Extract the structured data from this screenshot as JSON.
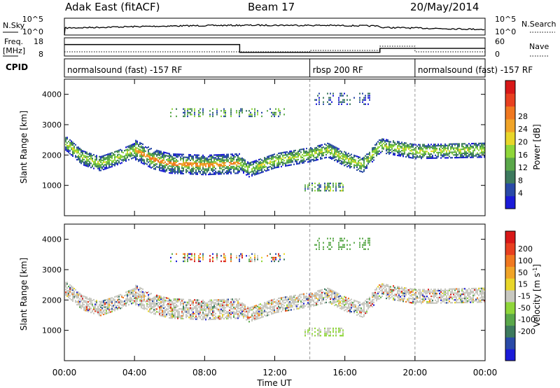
{
  "header": {
    "station": "Adak East (fitACF)",
    "beam": "Beam 17",
    "date": "20/May/2014"
  },
  "summary": {
    "nsky_label": "N.Sky",
    "nsearch_label": "N.Search",
    "freq_label_line1": "Freq.",
    "freq_label_line2": "[MHz]",
    "nave_label": "Nave",
    "cpid_label": "CPID",
    "left_ticks_top": [
      "10^5",
      "10^0"
    ],
    "left_ticks_freq": [
      "18",
      "8"
    ],
    "right_ticks_top": [
      "10^5",
      "10^0"
    ],
    "right_ticks_nave": [
      "60",
      "0"
    ],
    "cpid_segments": [
      {
        "label": "normalsound (fast) -157 RF",
        "start_hour": 0.0,
        "end_hour": 14.0
      },
      {
        "label": "rbsp 200 RF",
        "start_hour": 14.0,
        "end_hour": 20.0
      },
      {
        "label": "normalsound (fast) -157 RF",
        "start_hour": 20.0,
        "end_hour": 24.0
      }
    ],
    "freq_mhz_steps": [
      {
        "start_hour": 0.0,
        "end_hour": 10.0,
        "freq_mhz": 14.3
      },
      {
        "start_hour": 10.0,
        "end_hour": 18.0,
        "freq_mhz": 10.0
      },
      {
        "start_hour": 18.0,
        "end_hour": 24.0,
        "freq_mhz": 12.2
      }
    ]
  },
  "chart_data": [
    {
      "type": "heatmap",
      "panel": "power",
      "ylabel": "Slant Range [km]",
      "ylim": [
        0,
        4500
      ],
      "yticks": [
        1000,
        2000,
        3000,
        4000
      ],
      "colorbar_label": "Power [dB]",
      "colorbar_ticks": [
        4,
        8,
        12,
        16,
        20,
        24,
        28
      ],
      "colorbar_colors": [
        "#1b1bd8",
        "#2a4aa8",
        "#3d7a5e",
        "#5aa84a",
        "#8fd63a",
        "#e8d62a",
        "#f0a428",
        "#f07820",
        "#e84020",
        "#d81818"
      ],
      "echo_band_center_km": [
        {
          "hour": 0.0,
          "km": 2450
        },
        {
          "hour": 1.0,
          "km": 1950
        },
        {
          "hour": 2.0,
          "km": 1750
        },
        {
          "hour": 3.0,
          "km": 1950
        },
        {
          "hour": 4.0,
          "km": 2200
        },
        {
          "hour": 5.0,
          "km": 1900
        },
        {
          "hour": 6.0,
          "km": 1750
        },
        {
          "hour": 8.0,
          "km": 1700
        },
        {
          "hour": 10.0,
          "km": 1750
        },
        {
          "hour": 10.5,
          "km": 1550
        },
        {
          "hour": 12.0,
          "km": 1850
        },
        {
          "hour": 14.0,
          "km": 2050
        },
        {
          "hour": 15.0,
          "km": 2200
        },
        {
          "hour": 16.0,
          "km": 1900
        },
        {
          "hour": 17.0,
          "km": 1700
        },
        {
          "hour": 18.0,
          "km": 2350
        },
        {
          "hour": 20.0,
          "km": 2150
        },
        {
          "hour": 24.0,
          "km": 2200
        }
      ]
    },
    {
      "type": "heatmap",
      "panel": "velocity",
      "ylabel": "Slant Range [km]",
      "ylim": [
        0,
        4500
      ],
      "yticks": [
        1000,
        2000,
        3000,
        4000
      ],
      "colorbar_label": "Velocity [m s^-1]",
      "colorbar_ticks": [
        200,
        100,
        50,
        15,
        -15,
        -50,
        -100,
        -200
      ],
      "colorbar_colors": [
        "#1b1bd8",
        "#2a4aa8",
        "#3d7a5e",
        "#5aa84a",
        "#8fd63a",
        "#c8c8c0",
        "#e8d62a",
        "#f0a428",
        "#f07820",
        "#e84020",
        "#d81818"
      ]
    }
  ],
  "xaxis": {
    "label": "Time UT",
    "ticks": [
      "00:00",
      "04:00",
      "08:00",
      "12:00",
      "16:00",
      "20:00",
      "00:00"
    ]
  }
}
